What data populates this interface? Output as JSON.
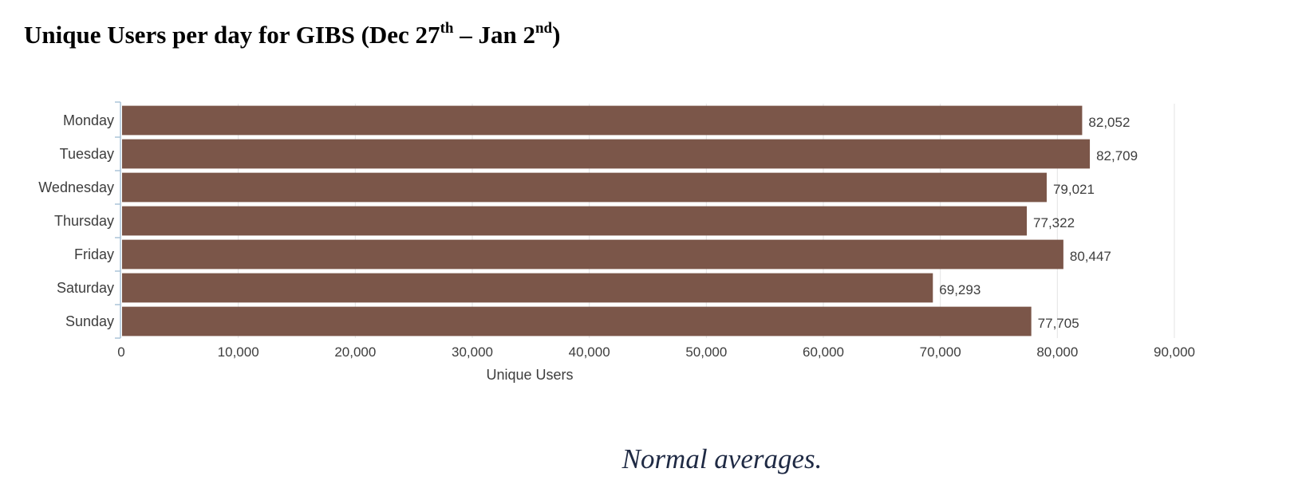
{
  "title": {
    "prefix": "Unique Users per day for GIBS (Dec 27",
    "sup1": "th",
    "middle": " – Jan 2",
    "sup2": "nd",
    "suffix": ")"
  },
  "caption": "Normal averages.",
  "colors": {
    "bar": "#7b5649",
    "grid": "#e3e3e3",
    "axis": "#aac4d9"
  },
  "chart_data": {
    "type": "bar",
    "orientation": "horizontal",
    "categories": [
      "Monday",
      "Tuesday",
      "Wednesday",
      "Thursday",
      "Friday",
      "Saturday",
      "Sunday"
    ],
    "values": [
      82052,
      82709,
      79021,
      77322,
      80447,
      69293,
      77705
    ],
    "value_labels": [
      "82,052",
      "82,709",
      "79,021",
      "77,322",
      "80,447",
      "69,293",
      "77,705"
    ],
    "xlabel": "Unique Users",
    "xlim": [
      0,
      90000
    ],
    "xticks": [
      0,
      10000,
      20000,
      30000,
      40000,
      50000,
      60000,
      70000,
      80000,
      90000
    ],
    "xtick_labels": [
      "0",
      "10,000",
      "20,000",
      "30,000",
      "40,000",
      "50,000",
      "60,000",
      "70,000",
      "80,000",
      "90,000"
    ],
    "grid": true
  }
}
